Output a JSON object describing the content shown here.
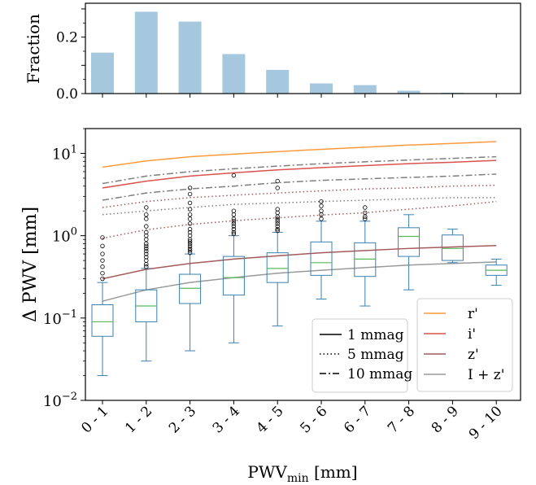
{
  "chart_data": [
    {
      "type": "bar",
      "ylabel": "Fraction",
      "ylim": [
        0,
        0.32
      ],
      "yticks": [
        "0.0",
        "0.2"
      ],
      "color": "#a6c8df",
      "categories": [
        "0 - 1",
        "1 - 2",
        "2 - 3",
        "3 - 4",
        "4 - 5",
        "5 - 6",
        "6 - 7",
        "7 - 8",
        "8 - 9",
        "9 - 10"
      ],
      "values": [
        0.145,
        0.29,
        0.255,
        0.14,
        0.084,
        0.036,
        0.03,
        0.01,
        0.003,
        0.001
      ]
    },
    {
      "type": "box",
      "ylabel": "Δ PWV [mm]",
      "xlabel": "PWV",
      "xlabel_sub": "min",
      "xlabel_unit": " [mm]",
      "yscale": "log",
      "ylim": [
        0.01,
        20
      ],
      "ytick_labels": [
        {
          "base": "10",
          "exp": "−2",
          "value": 0.01
        },
        {
          "base": "10",
          "exp": "−1",
          "value": 0.1
        },
        {
          "base": "10",
          "exp": "0",
          "value": 1
        },
        {
          "base": "10",
          "exp": "1",
          "value": 10
        }
      ],
      "categories": [
        "0 - 1",
        "1 - 2",
        "2 - 3",
        "3 - 4",
        "4 - 5",
        "5 - 6",
        "6 - 7",
        "7 - 8",
        "8 - 9",
        "9 - 10"
      ],
      "box_color": "#3a80b0",
      "median_color": "#5cb85c",
      "boxes": [
        {
          "whislo": 0.02,
          "q1": 0.06,
          "med": 0.09,
          "q3": 0.145,
          "whishi": 0.27,
          "fliers": [
            0.3,
            0.35,
            0.42,
            0.5,
            0.6,
            0.75,
            0.95
          ]
        },
        {
          "whislo": 0.03,
          "q1": 0.09,
          "med": 0.14,
          "q3": 0.22,
          "whishi": 0.4,
          "fliers": [
            0.42,
            0.45,
            0.5,
            0.55,
            0.6,
            0.65,
            0.7,
            0.75,
            0.8,
            0.9,
            1.0,
            1.1,
            1.3,
            1.6,
            1.8,
            2.2
          ]
        },
        {
          "whislo": 0.04,
          "q1": 0.15,
          "med": 0.23,
          "q3": 0.34,
          "whishi": 0.6,
          "fliers": [
            0.62,
            0.66,
            0.7,
            0.75,
            0.8,
            0.85,
            0.9,
            1.0,
            1.1,
            1.2,
            1.4,
            1.6,
            1.8,
            2.1,
            2.5,
            3.2,
            3.8
          ]
        },
        {
          "whislo": 0.05,
          "q1": 0.19,
          "med": 0.31,
          "q3": 0.56,
          "whishi": 1.0,
          "fliers": [
            1.05,
            1.1,
            1.2,
            1.3,
            1.4,
            1.5,
            1.6,
            1.8,
            2.0,
            5.4
          ]
        },
        {
          "whislo": 0.08,
          "q1": 0.27,
          "med": 0.4,
          "q3": 0.62,
          "whishi": 1.1,
          "fliers": [
            1.15,
            1.2,
            1.3,
            1.4,
            1.5,
            1.6,
            1.7,
            1.9,
            2.1,
            3.8,
            4.6
          ]
        },
        {
          "whislo": 0.17,
          "q1": 0.33,
          "med": 0.47,
          "q3": 0.84,
          "whishi": 1.5,
          "fliers": [
            1.6,
            1.8,
            2.0,
            2.3,
            2.6
          ]
        },
        {
          "whislo": 0.14,
          "q1": 0.32,
          "med": 0.52,
          "q3": 0.82,
          "whishi": 1.5,
          "fliers": [
            1.6,
            1.7,
            1.9,
            2.2
          ]
        },
        {
          "whislo": 0.22,
          "q1": 0.56,
          "med": 0.98,
          "q3": 1.25,
          "whishi": 1.8,
          "fliers": []
        },
        {
          "whislo": 0.47,
          "q1": 0.5,
          "med": 0.7,
          "q3": 1.02,
          "whishi": 1.2,
          "fliers": []
        },
        {
          "whislo": 0.25,
          "q1": 0.33,
          "med": 0.38,
          "q3": 0.44,
          "whishi": 0.52,
          "fliers": []
        }
      ],
      "curve_x": [
        0,
        1,
        2,
        3,
        4,
        5,
        6,
        7,
        8,
        9
      ],
      "series": [
        {
          "name": "r'",
          "color": "#ff9a3c",
          "dash": "solid",
          "values": [
            6.8,
            8.1,
            9.1,
            9.8,
            10.5,
            11.2,
            11.9,
            12.6,
            13.2,
            13.9
          ]
        },
        {
          "color": "#7f7f7f",
          "dash": "dashdot",
          "values": [
            4.3,
            5.3,
            6.0,
            6.5,
            7.0,
            7.5,
            7.9,
            8.3,
            8.7,
            9.1
          ]
        },
        {
          "name": "i'",
          "color": "#d9534f",
          "dash": "solid",
          "values": [
            3.8,
            4.6,
            5.3,
            5.8,
            6.3,
            6.7,
            7.1,
            7.5,
            7.8,
            8.2
          ]
        },
        {
          "color": "#7f7f7f",
          "dash": "dashdot",
          "values": [
            2.7,
            3.3,
            3.7,
            4.0,
            4.4,
            4.7,
            4.9,
            5.1,
            5.3,
            5.6
          ]
        },
        {
          "color": "#a45a5a",
          "dash": "dotted",
          "values": [
            2.2,
            2.6,
            2.9,
            3.1,
            3.3,
            3.5,
            3.7,
            3.8,
            4.0,
            4.1
          ]
        },
        {
          "color": "#7f7f7f",
          "dash": "dotted",
          "values": [
            1.8,
            2.0,
            2.2,
            2.4,
            2.5,
            2.6,
            2.7,
            2.8,
            2.9,
            2.9
          ]
        },
        {
          "color": "#a45a5a",
          "dash": "dotted",
          "values": [
            0.93,
            1.18,
            1.37,
            1.52,
            1.65,
            1.78,
            1.9,
            2.1,
            2.3,
            2.6
          ]
        },
        {
          "name": "z'",
          "color": "#a45a5a",
          "dash": "solid",
          "values": [
            0.3,
            0.39,
            0.46,
            0.52,
            0.57,
            0.62,
            0.66,
            0.7,
            0.73,
            0.76
          ]
        },
        {
          "name": "I + z'",
          "color": "#9a9a9a",
          "dash": "solid",
          "values": [
            0.16,
            0.22,
            0.27,
            0.31,
            0.35,
            0.38,
            0.41,
            0.44,
            0.46,
            0.48
          ]
        }
      ],
      "legend_styles": {
        "placement": "lower-center",
        "items": [
          {
            "label": "1 mmag",
            "dash": "solid"
          },
          {
            "label": "5 mmag",
            "dash": "dotted"
          },
          {
            "label": "10 mmag",
            "dash": "dashdot"
          }
        ]
      },
      "legend_filters": {
        "placement": "lower-right",
        "items": [
          {
            "label": "r'",
            "color": "#ff9a3c"
          },
          {
            "label": "i'",
            "color": "#d9534f"
          },
          {
            "label": "z'",
            "color": "#a45a5a"
          },
          {
            "label": "I + z'",
            "color": "#9a9a9a"
          }
        ]
      }
    }
  ]
}
